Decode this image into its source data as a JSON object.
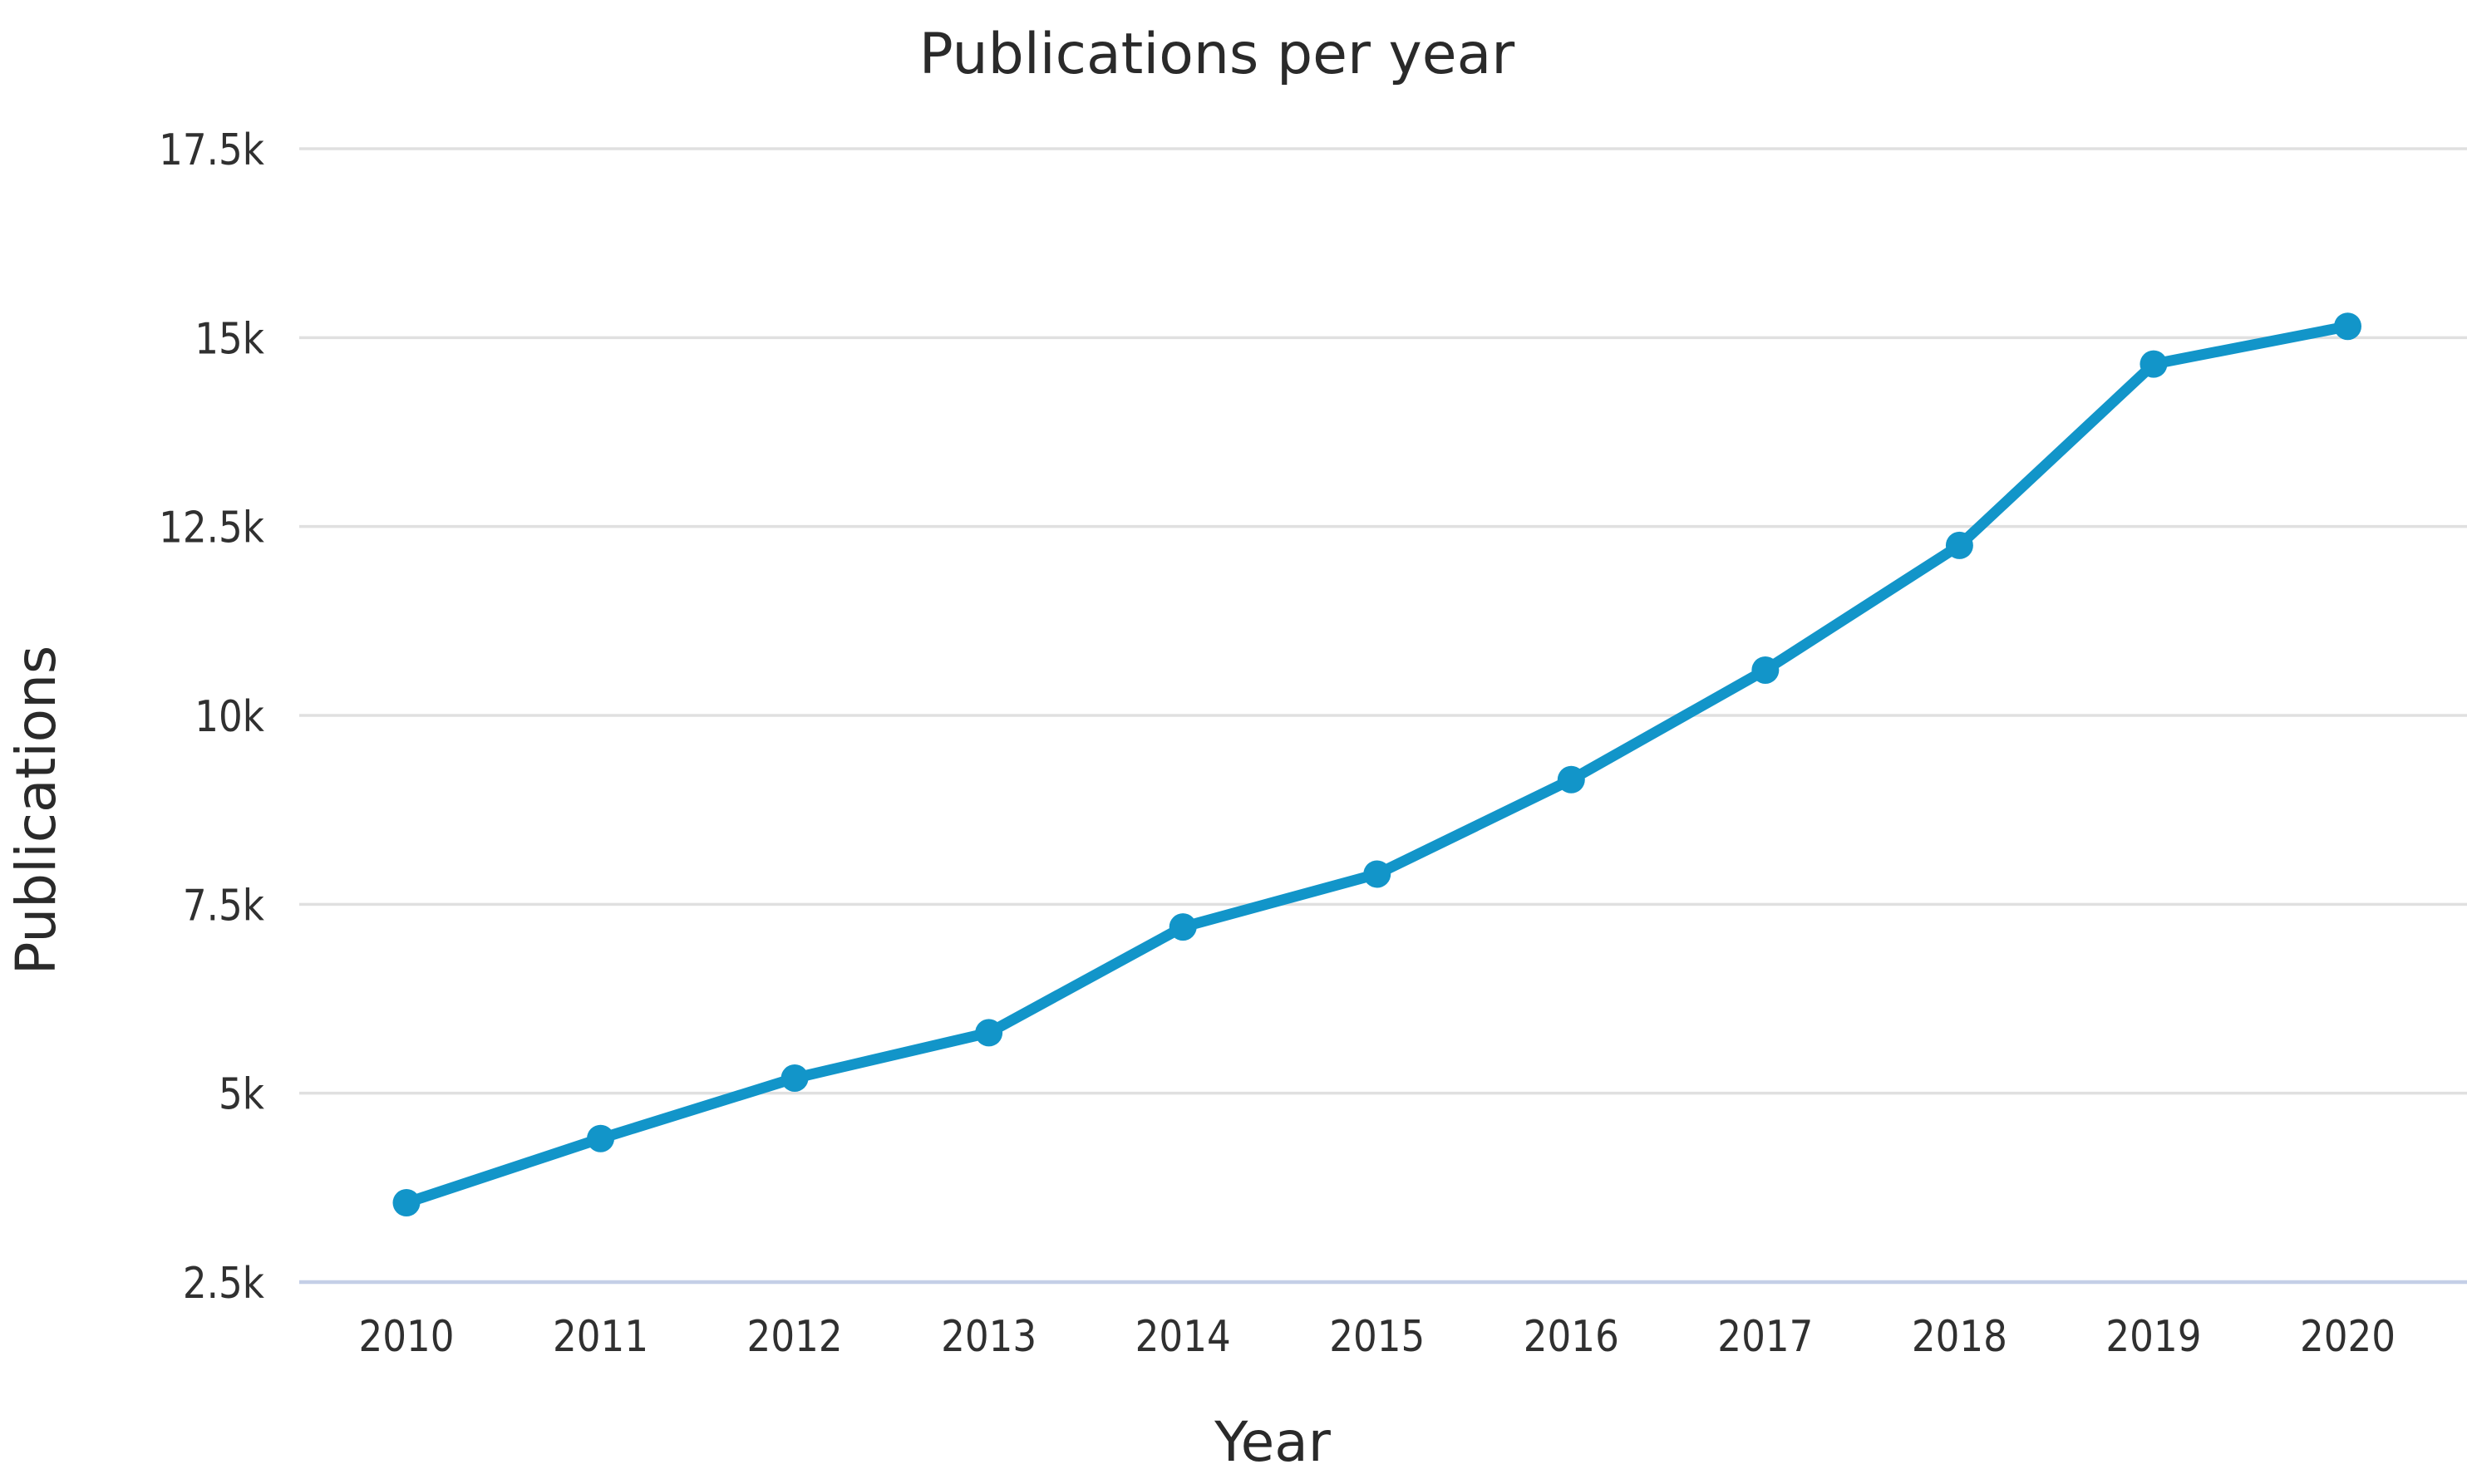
{
  "title": "Publications per year",
  "y_axis": {
    "label": "Publications",
    "ticks": [
      {
        "value": 2500,
        "label": "2.5k"
      },
      {
        "value": 5000,
        "label": "5k"
      },
      {
        "value": 7500,
        "label": "7.5k"
      },
      {
        "value": 10000,
        "label": "10k"
      },
      {
        "value": 12500,
        "label": "12.5k"
      },
      {
        "value": 15000,
        "label": "15k"
      },
      {
        "value": 17500,
        "label": "17.5k"
      }
    ]
  },
  "x_axis": {
    "label": "Year",
    "ticks": [
      "2010",
      "2011",
      "2012",
      "2013",
      "2014",
      "2015",
      "2016",
      "2017",
      "2018",
      "2019",
      "2020"
    ]
  },
  "chart_data": {
    "type": "line",
    "title": "Publications per year",
    "xlabel": "Year",
    "ylabel": "Publications",
    "x": [
      2010,
      2011,
      2012,
      2013,
      2014,
      2015,
      2016,
      2017,
      2018,
      2019,
      2020
    ],
    "series": [
      {
        "name": "Publications",
        "values": [
          3550,
          4400,
          5200,
          5800,
          7200,
          7900,
          9150,
          10600,
          12250,
          14650,
          15150
        ]
      }
    ],
    "ylim": [
      2500,
      17500
    ],
    "ytick_step": 2500,
    "grid": true,
    "legend": false,
    "marker": "circle",
    "colors": {
      "line": "#1295c9",
      "marker": "#1295c9",
      "gridline": "#e0e0e0",
      "baseline_gridline": "#c4cfe7",
      "title_text": "#2a2a2a",
      "tick_text": "#303030"
    }
  }
}
